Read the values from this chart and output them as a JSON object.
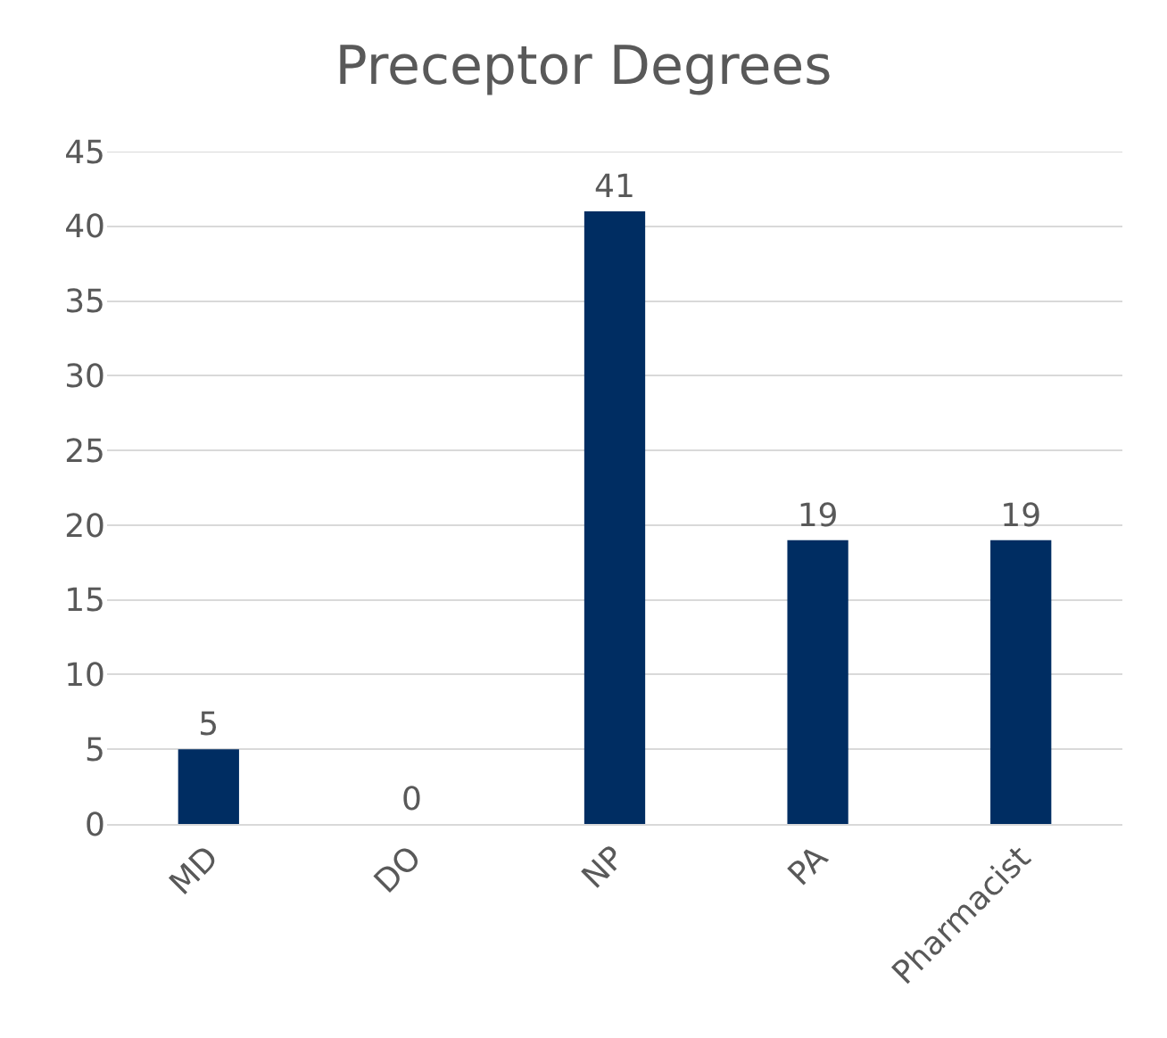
{
  "chart_data": {
    "type": "bar",
    "title": "Preceptor Degrees",
    "categories": [
      "MD",
      "DO",
      "NP",
      "PA",
      "Pharmacist"
    ],
    "values": [
      5,
      0,
      41,
      19,
      19
    ],
    "color": "#002d62",
    "ylim": [
      0,
      45
    ],
    "yticks": [
      0,
      5,
      10,
      15,
      20,
      25,
      30,
      35,
      40,
      45
    ],
    "grid": "y",
    "data_labels": true
  }
}
